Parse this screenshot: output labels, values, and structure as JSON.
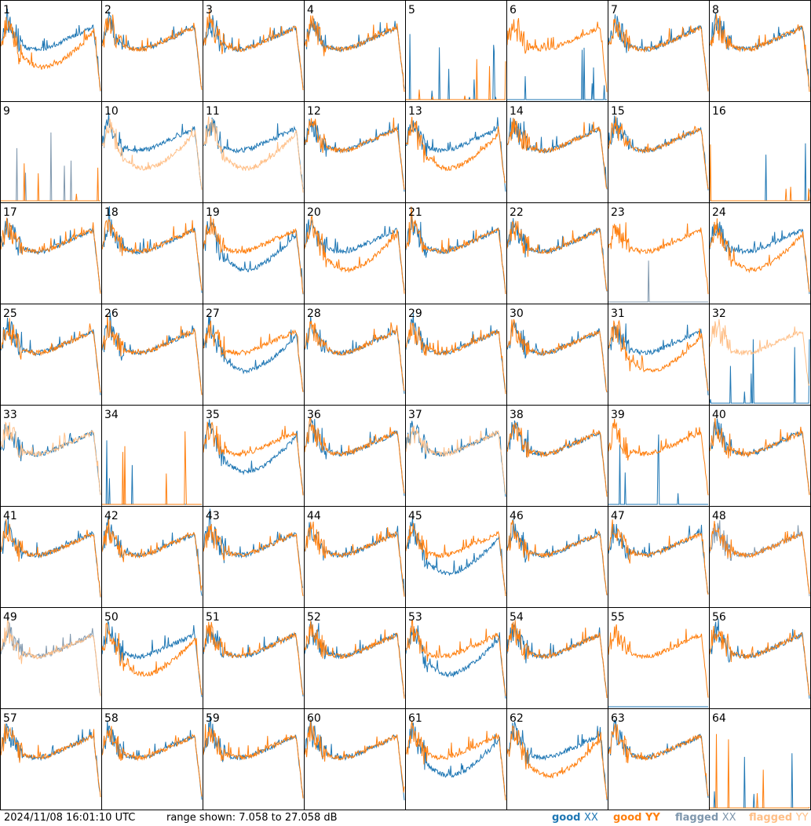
{
  "footer": {
    "timestamp": "2024/11/08 16:01:10 UTC",
    "range_label": "range shown: 7.058 to 27.058 dB"
  },
  "legend": [
    {
      "word": "good",
      "pol": "XX",
      "color": "#1f77b4"
    },
    {
      "word": "good",
      "pol": "YY",
      "color": "#ff7f0e"
    },
    {
      "word": "flagged",
      "pol": "XX",
      "color": "#7f97ad"
    },
    {
      "word": "flagged",
      "pol": "YY",
      "color": "#ffbf87"
    }
  ],
  "chart_data": {
    "type": "line",
    "panels": 64,
    "ylim_db": [
      7.058,
      27.058
    ],
    "panel_labels": [
      "1",
      "2",
      "3",
      "4",
      "5",
      "6",
      "7",
      "8",
      "9",
      "10",
      "11",
      "12",
      "13",
      "14",
      "15",
      "16",
      "17",
      "18",
      "19",
      "20",
      "21",
      "22",
      "23",
      "24",
      "25",
      "26",
      "27",
      "28",
      "29",
      "30",
      "31",
      "32",
      "33",
      "34",
      "35",
      "36",
      "37",
      "38",
      "39",
      "40",
      "41",
      "42",
      "43",
      "44",
      "45",
      "46",
      "47",
      "48",
      "49",
      "50",
      "51",
      "52",
      "53",
      "54",
      "55",
      "56",
      "57",
      "58",
      "59",
      "60",
      "61",
      "62",
      "63",
      "64"
    ],
    "colors": {
      "good_xx": "#1f77b4",
      "good_yy": "#ff7f0e",
      "flagged_xx": "#7f97ad",
      "flagged_yy": "#ffbf87"
    },
    "series_status": {
      "flagged_xx": [
        9,
        23,
        48,
        49
      ],
      "flagged_yy": [
        10,
        11,
        32,
        33,
        37,
        49
      ],
      "xx_down": [
        5,
        6,
        9,
        16,
        23,
        32,
        34,
        39,
        55,
        64
      ],
      "yy_down": [
        5,
        9,
        16,
        34,
        64
      ],
      "xx_low": [
        6,
        19,
        27,
        35,
        45,
        53,
        61
      ],
      "yy_low": [
        1,
        10,
        11,
        13,
        20,
        24,
        31,
        50,
        62
      ]
    }
  }
}
